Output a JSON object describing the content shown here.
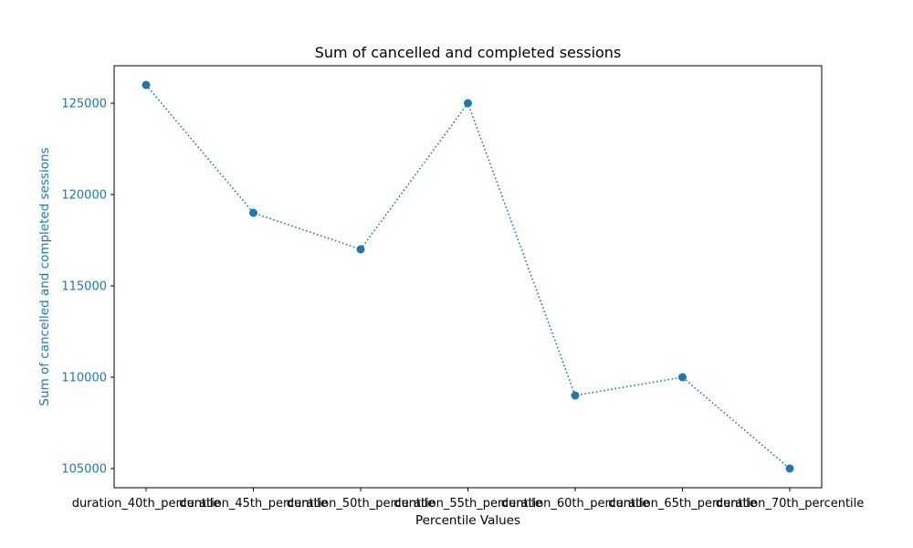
{
  "chart_data": {
    "type": "line",
    "title": "Sum of cancelled and completed sessions",
    "xlabel": "Percentile Values",
    "ylabel": "Sum of cancelled and completed sessions",
    "categories": [
      "duration_40th_percentile",
      "duration_45th_percentile",
      "duration_50th_percentile",
      "duration_55th_percentile",
      "duration_60th_percentile",
      "duration_65th_percentile",
      "duration_70th_percentile"
    ],
    "series": [
      {
        "values": [
          126000,
          119000,
          117000,
          125000,
          109000,
          110000,
          105000
        ],
        "color": "#1f77b4",
        "line_style": "dotted",
        "marker": "circle"
      }
    ],
    "yticks": [
      105000,
      110000,
      115000,
      120000,
      125000
    ],
    "ytick_labels": [
      "105000",
      "110000",
      "115000",
      "120000",
      "125000"
    ],
    "ylim": [
      103950,
      127050
    ],
    "ylabel_color": "#1f77b4",
    "ytick_color": "#1f77b4",
    "grid": false,
    "legend": "none"
  }
}
